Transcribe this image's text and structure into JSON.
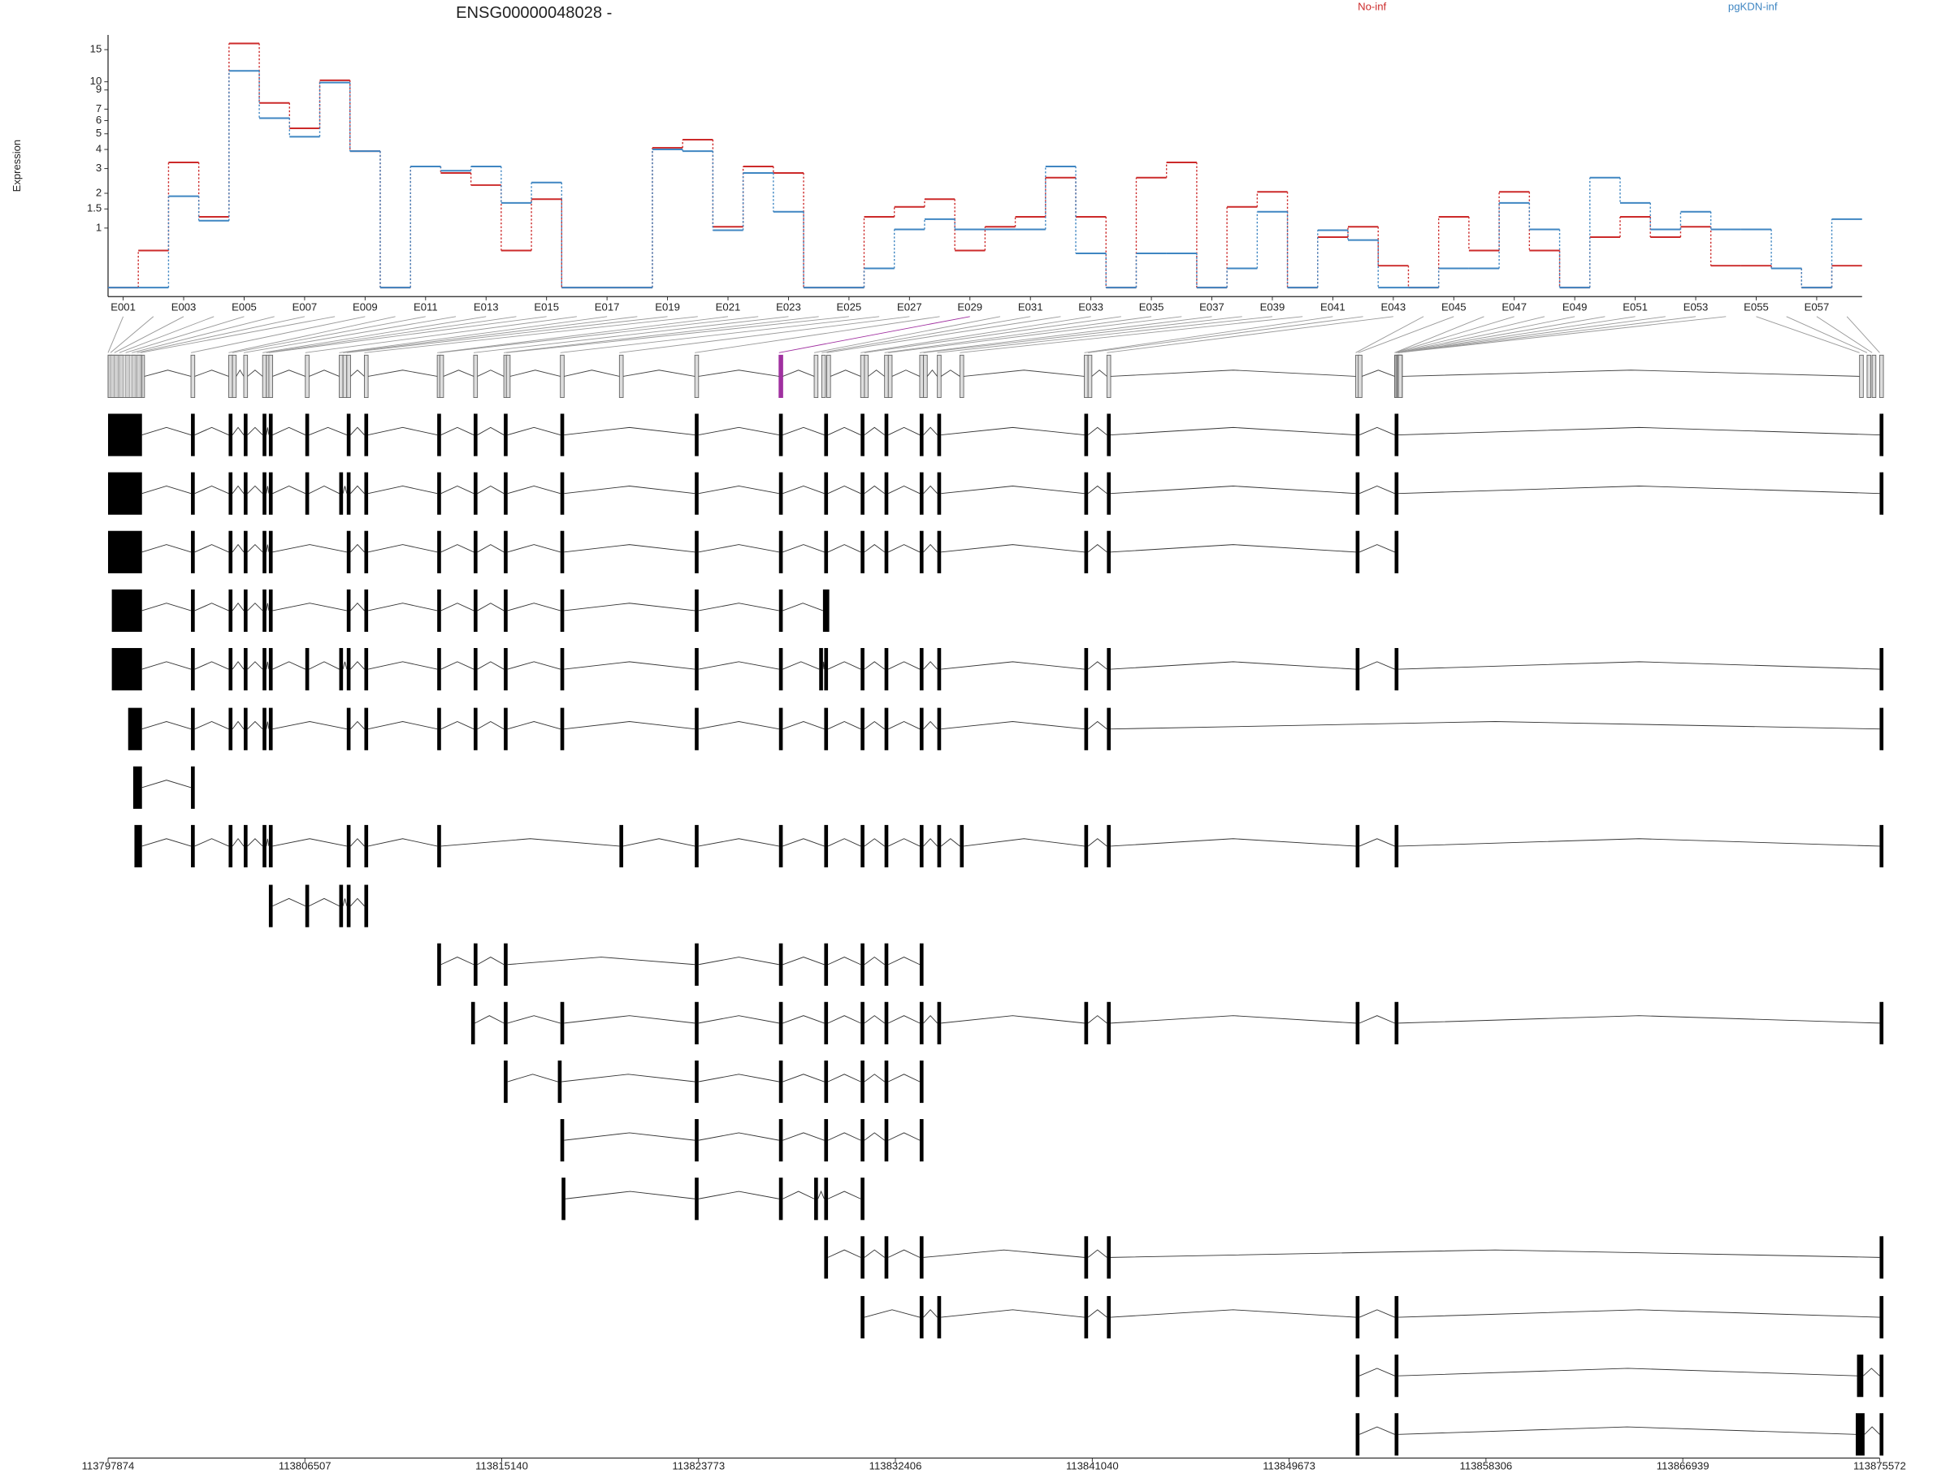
{
  "chart_data": [
    {
      "type": "line",
      "title": "ENSG00000048028 -",
      "y_label": "Expression",
      "categories": [
        "E001",
        null,
        "E003",
        null,
        "E005",
        null,
        "E007",
        null,
        "E009",
        null,
        "E011",
        null,
        "E013",
        null,
        "E015",
        null,
        "E017",
        null,
        "E019",
        null,
        "E021",
        null,
        "E023",
        null,
        "E025",
        null,
        "E027",
        null,
        "E029",
        null,
        "E031",
        null,
        "E033",
        null,
        "E035",
        null,
        "E037",
        null,
        "E039",
        null,
        "E041",
        null,
        "E043",
        null,
        "E045",
        null,
        "E047",
        null,
        "E049",
        null,
        "E051",
        null,
        "E053",
        null,
        "E055",
        null,
        "E057",
        null
      ],
      "series": [
        {
          "name": "No-inf",
          "color": "#cc2a2a",
          "values": [
            0,
            0.54,
            3.3,
            1.28,
            16.2,
            7.6,
            5.4,
            10.2,
            3.9,
            0,
            3.1,
            2.8,
            2.3,
            0.54,
            1.8,
            0,
            0,
            0,
            4.1,
            4.6,
            1.03,
            3.1,
            2.8,
            0,
            0,
            1.28,
            1.56,
            1.8,
            0.54,
            1.03,
            1.28,
            2.6,
            1.28,
            0,
            2.6,
            3.3,
            0,
            1.56,
            2.05,
            0,
            0.8,
            1.03,
            0.29,
            0,
            1.28,
            0.54,
            2.05,
            0.54,
            0,
            0.8,
            1.28,
            0.8,
            1.03,
            0.29,
            0.29,
            0.25,
            0,
            0.29
          ]
        },
        {
          "name": "pgKDN-inf",
          "color": "#3f86c2",
          "values": [
            0,
            0,
            1.9,
            1.18,
            11.5,
            6.2,
            4.8,
            9.9,
            3.9,
            0,
            3.1,
            2.9,
            3.1,
            1.68,
            2.4,
            0,
            0,
            0,
            4.0,
            3.9,
            0.95,
            2.8,
            1.42,
            0,
            0,
            0.25,
            0.97,
            1.22,
            0.97,
            0.97,
            0.97,
            3.1,
            0.49,
            0,
            0.49,
            0.49,
            0,
            0.25,
            1.42,
            0,
            0.95,
            0.74,
            0,
            0,
            0.25,
            0.25,
            1.68,
            0.97,
            0,
            2.6,
            1.68,
            0.97,
            1.42,
            0.97,
            0.97,
            0.25,
            0,
            1.22
          ]
        }
      ],
      "yscale": "log1p",
      "ylim": [
        -0.1,
        18
      ],
      "yticks": [
        1,
        1.5,
        2,
        3,
        4,
        5,
        6,
        7,
        9,
        10,
        15
      ]
    },
    {
      "type": "gene-model",
      "xlim": [
        113797874,
        113875572
      ],
      "xticks": [
        113797874,
        113806507,
        113815140,
        113823773,
        113832406,
        113841040,
        113849673,
        113858306,
        113866939,
        113875572
      ]
    }
  ]
}
